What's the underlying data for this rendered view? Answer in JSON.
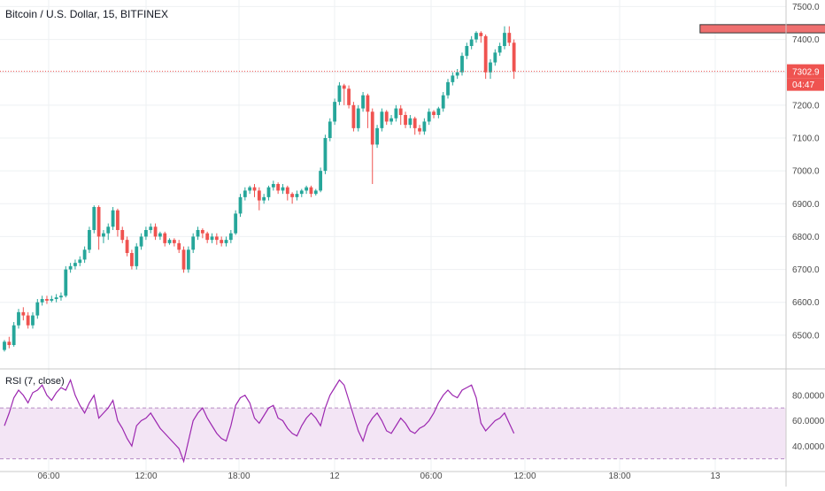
{
  "chart_data": {
    "type": "candlestick",
    "title": "Bitcoin / U.S. Dollar, 15, BITFINEX",
    "xaxis": {
      "tick_labels": [
        "06:00",
        "12:00",
        "18:00",
        "12",
        "06:00",
        "12:00",
        "18:00",
        "13"
      ]
    },
    "price_axis": {
      "ylim": [
        6400,
        7520
      ],
      "tick_values": [
        6500,
        6600,
        6700,
        6800,
        6900,
        7000,
        7100,
        7200,
        7300,
        7400,
        7500
      ],
      "tick_labels": [
        "6500.0",
        "6600.0",
        "6700.0",
        "6800.0",
        "6900.0",
        "7000.0",
        "7100.0",
        "7200.0",
        "7300.0",
        "7400.0",
        "7500.0"
      ]
    },
    "last_price": {
      "value": 7302.9,
      "label": "7302.9",
      "countdown": "04:47"
    },
    "resistance_zone": {
      "low": 7420,
      "high": 7445,
      "start_index": 148,
      "end_index": 183
    },
    "candles": [
      [
        6455,
        6480,
        6450,
        6485
      ],
      [
        6480,
        6470,
        6460,
        6495
      ],
      [
        6470,
        6530,
        6465,
        6540
      ],
      [
        6530,
        6570,
        6520,
        6580
      ],
      [
        6570,
        6560,
        6545,
        6585
      ],
      [
        6560,
        6530,
        6520,
        6570
      ],
      [
        6530,
        6560,
        6520,
        6570
      ],
      [
        6560,
        6600,
        6550,
        6610
      ],
      [
        6600,
        6610,
        6590,
        6620
      ],
      [
        6610,
        6605,
        6595,
        6620
      ],
      [
        6605,
        6610,
        6600,
        6620
      ],
      [
        6610,
        6615,
        6600,
        6625
      ],
      [
        6615,
        6620,
        6605,
        6630
      ],
      [
        6620,
        6700,
        6615,
        6710
      ],
      [
        6700,
        6710,
        6690,
        6720
      ],
      [
        6710,
        6720,
        6700,
        6730
      ],
      [
        6720,
        6730,
        6710,
        6740
      ],
      [
        6730,
        6760,
        6720,
        6770
      ],
      [
        6760,
        6820,
        6750,
        6830
      ],
      [
        6820,
        6890,
        6810,
        6895
      ],
      [
        6890,
        6800,
        6760,
        6895
      ],
      [
        6800,
        6810,
        6780,
        6820
      ],
      [
        6810,
        6830,
        6790,
        6840
      ],
      [
        6830,
        6880,
        6820,
        6890
      ],
      [
        6880,
        6820,
        6800,
        6885
      ],
      [
        6820,
        6790,
        6780,
        6830
      ],
      [
        6790,
        6750,
        6740,
        6800
      ],
      [
        6750,
        6710,
        6700,
        6760
      ],
      [
        6710,
        6770,
        6700,
        6780
      ],
      [
        6770,
        6800,
        6760,
        6810
      ],
      [
        6800,
        6820,
        6790,
        6830
      ],
      [
        6820,
        6830,
        6810,
        6840
      ],
      [
        6830,
        6800,
        6790,
        6840
      ],
      [
        6800,
        6810,
        6790,
        6815
      ],
      [
        6810,
        6780,
        6770,
        6815
      ],
      [
        6780,
        6790,
        6775,
        6795
      ],
      [
        6790,
        6780,
        6770,
        6795
      ],
      [
        6780,
        6760,
        6750,
        6790
      ],
      [
        6760,
        6700,
        6690,
        6770
      ],
      [
        6700,
        6760,
        6690,
        6770
      ],
      [
        6760,
        6800,
        6750,
        6810
      ],
      [
        6800,
        6820,
        6790,
        6830
      ],
      [
        6820,
        6810,
        6795,
        6825
      ],
      [
        6810,
        6790,
        6780,
        6815
      ],
      [
        6790,
        6800,
        6780,
        6810
      ],
      [
        6800,
        6790,
        6775,
        6810
      ],
      [
        6790,
        6780,
        6770,
        6800
      ],
      [
        6780,
        6790,
        6770,
        6800
      ],
      [
        6790,
        6810,
        6780,
        6820
      ],
      [
        6810,
        6870,
        6805,
        6880
      ],
      [
        6870,
        6920,
        6860,
        6930
      ],
      [
        6920,
        6940,
        6910,
        6950
      ],
      [
        6940,
        6950,
        6930,
        6955
      ],
      [
        6950,
        6940,
        6920,
        6960
      ],
      [
        6940,
        6910,
        6880,
        6950
      ],
      [
        6910,
        6920,
        6900,
        6930
      ],
      [
        6920,
        6950,
        6910,
        6955
      ],
      [
        6950,
        6960,
        6940,
        6970
      ],
      [
        6960,
        6940,
        6930,
        6965
      ],
      [
        6940,
        6950,
        6930,
        6960
      ],
      [
        6950,
        6930,
        6910,
        6955
      ],
      [
        6930,
        6920,
        6900,
        6935
      ],
      [
        6920,
        6930,
        6910,
        6940
      ],
      [
        6930,
        6940,
        6920,
        6945
      ],
      [
        6940,
        6950,
        6930,
        6955
      ],
      [
        6950,
        6930,
        6920,
        6955
      ],
      [
        6930,
        6940,
        6925,
        6945
      ],
      [
        6940,
        7000,
        6935,
        7010
      ],
      [
        7000,
        7100,
        6990,
        7110
      ],
      [
        7100,
        7150,
        7090,
        7160
      ],
      [
        7150,
        7210,
        7140,
        7220
      ],
      [
        7210,
        7260,
        7200,
        7270
      ],
      [
        7260,
        7250,
        7200,
        7265
      ],
      [
        7250,
        7200,
        7190,
        7260
      ],
      [
        7200,
        7130,
        7120,
        7210
      ],
      [
        7130,
        7190,
        7120,
        7200
      ],
      [
        7190,
        7230,
        7180,
        7240
      ],
      [
        7230,
        7180,
        7130,
        7235
      ],
      [
        7180,
        7080,
        6960,
        7190
      ],
      [
        7080,
        7130,
        7070,
        7140
      ],
      [
        7130,
        7180,
        7120,
        7190
      ],
      [
        7180,
        7150,
        7140,
        7185
      ],
      [
        7150,
        7160,
        7140,
        7170
      ],
      [
        7160,
        7190,
        7150,
        7200
      ],
      [
        7190,
        7170,
        7140,
        7200
      ],
      [
        7170,
        7140,
        7130,
        7180
      ],
      [
        7140,
        7160,
        7130,
        7170
      ],
      [
        7160,
        7130,
        7110,
        7165
      ],
      [
        7130,
        7120,
        7110,
        7140
      ],
      [
        7120,
        7150,
        7110,
        7160
      ],
      [
        7150,
        7180,
        7140,
        7190
      ],
      [
        7180,
        7170,
        7160,
        7185
      ],
      [
        7170,
        7190,
        7160,
        7195
      ],
      [
        7190,
        7230,
        7180,
        7240
      ],
      [
        7230,
        7270,
        7220,
        7280
      ],
      [
        7270,
        7290,
        7260,
        7300
      ],
      [
        7290,
        7300,
        7280,
        7310
      ],
      [
        7300,
        7350,
        7290,
        7360
      ],
      [
        7350,
        7380,
        7340,
        7390
      ],
      [
        7380,
        7400,
        7370,
        7410
      ],
      [
        7400,
        7420,
        7390,
        7425
      ],
      [
        7420,
        7410,
        7390,
        7425
      ],
      [
        7410,
        7300,
        7280,
        7415
      ],
      [
        7300,
        7330,
        7280,
        7340
      ],
      [
        7330,
        7360,
        7320,
        7370
      ],
      [
        7360,
        7380,
        7350,
        7390
      ],
      [
        7380,
        7420,
        7370,
        7440
      ],
      [
        7420,
        7390,
        7380,
        7440
      ],
      [
        7390,
        7303,
        7280,
        7400
      ]
    ]
  },
  "rsi": {
    "label": "RSI (7, close)",
    "ylim": [
      20,
      100
    ],
    "tick_values": [
      40,
      60,
      80
    ],
    "tick_labels": [
      "40.0000",
      "60.0000",
      "80.0000"
    ],
    "upper_band": 70,
    "lower_band": 30,
    "values": [
      56,
      66,
      78,
      84,
      80,
      74,
      82,
      84,
      88,
      80,
      76,
      82,
      86,
      84,
      92,
      80,
      72,
      66,
      74,
      80,
      62,
      66,
      70,
      76,
      60,
      54,
      46,
      40,
      56,
      60,
      62,
      66,
      60,
      54,
      50,
      46,
      42,
      38,
      28,
      44,
      60,
      66,
      70,
      62,
      56,
      50,
      46,
      44,
      56,
      72,
      78,
      80,
      74,
      62,
      58,
      64,
      70,
      72,
      62,
      60,
      54,
      50,
      48,
      56,
      62,
      66,
      62,
      56,
      70,
      80,
      86,
      92,
      88,
      76,
      64,
      52,
      44,
      56,
      62,
      66,
      60,
      52,
      50,
      56,
      62,
      58,
      52,
      50,
      54,
      56,
      60,
      66,
      74,
      80,
      84,
      80,
      78,
      84,
      86,
      88,
      78,
      58,
      52,
      56,
      60,
      62,
      66,
      58,
      50
    ]
  },
  "colors": {
    "up": "#26a69a",
    "down": "#ef5350",
    "rsi_line": "#9c27b0",
    "rsi_band_fill": "#f3e5f5",
    "price_line": "#ef5350",
    "grid": "#eef0f3",
    "axis_text": "#4a4a4a"
  }
}
